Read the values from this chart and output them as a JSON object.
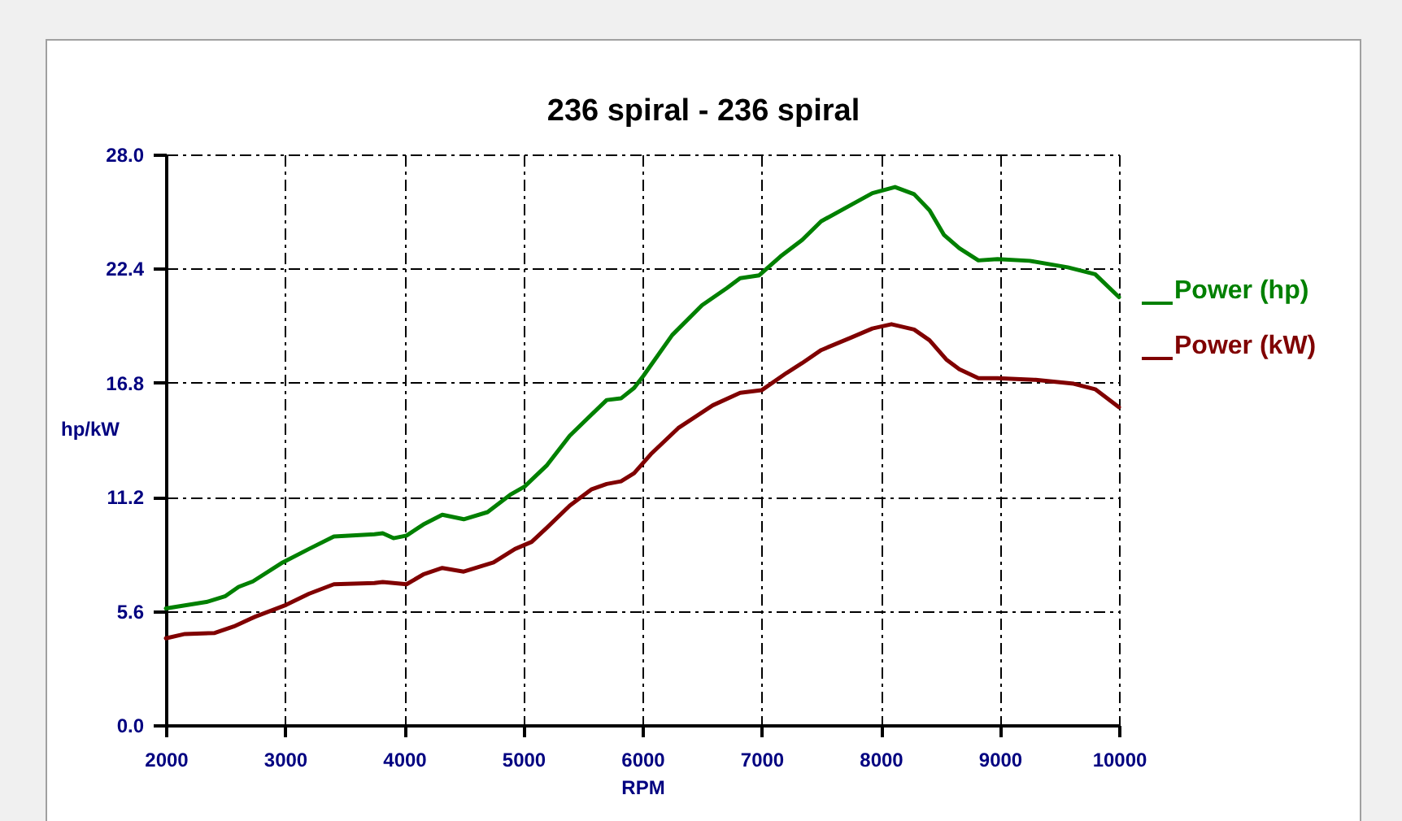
{
  "chart_data": {
    "type": "line",
    "title": "236 spiral - 236 spiral",
    "xlabel": "RPM",
    "ylabel": "hp/kW",
    "xlim": [
      2000,
      10000
    ],
    "xticks": [
      2000,
      3000,
      4000,
      5000,
      6000,
      7000,
      8000,
      9000,
      10000
    ],
    "ylim": [
      0,
      28
    ],
    "yticks": [
      {
        "value": 0,
        "label": "0.0"
      },
      5.6,
      11.2,
      16.8,
      22.4,
      {
        "value": 28,
        "label": "28.0"
      }
    ],
    "grid": true,
    "legend": "right",
    "series": [
      {
        "name": "Power (hp)",
        "color": "#008000",
        "x": [
          2000,
          2340,
          2500,
          2610,
          2730,
          2980,
          3200,
          3410,
          3750,
          3820,
          3910,
          4020,
          4160,
          4320,
          4500,
          4700,
          4890,
          5010,
          5200,
          5390,
          5520,
          5700,
          5820,
          5930,
          6010,
          6250,
          6500,
          6710,
          6820,
          6980,
          7160,
          7340,
          7500,
          7750,
          7930,
          8120,
          8280,
          8410,
          8530,
          8660,
          8820,
          8980,
          9250,
          9570,
          9800,
          10000
        ],
        "values": [
          5.72,
          6.04,
          6.33,
          6.78,
          7.05,
          7.98,
          8.64,
          9.25,
          9.36,
          9.41,
          9.17,
          9.3,
          9.84,
          10.32,
          10.1,
          10.45,
          11.3,
          11.7,
          12.76,
          14.2,
          14.94,
          15.95,
          16.03,
          16.54,
          17.15,
          19.14,
          20.6,
          21.45,
          21.93,
          22.07,
          23.0,
          23.8,
          24.72,
          25.52,
          26.1,
          26.4,
          26.05,
          25.26,
          24.06,
          23.4,
          22.8,
          22.86,
          22.78,
          22.46,
          22.12,
          21.0
        ]
      },
      {
        "name": "Power (kW)",
        "color": "#800000",
        "x": [
          2000,
          2160,
          2410,
          2570,
          2750,
          3010,
          3200,
          3410,
          3750,
          3820,
          4020,
          4160,
          4320,
          4500,
          4750,
          4930,
          5070,
          5200,
          5390,
          5570,
          5700,
          5820,
          5930,
          6070,
          6300,
          6590,
          6820,
          7000,
          7210,
          7340,
          7500,
          7750,
          7930,
          8090,
          8280,
          8410,
          8550,
          8660,
          8820,
          8980,
          9300,
          9620,
          9800,
          10000
        ],
        "values": [
          4.26,
          4.47,
          4.52,
          4.84,
          5.32,
          5.9,
          6.44,
          6.91,
          6.97,
          7.02,
          6.91,
          7.39,
          7.71,
          7.53,
          7.98,
          8.64,
          8.99,
          9.7,
          10.77,
          11.56,
          11.83,
          11.96,
          12.36,
          13.29,
          14.57,
          15.69,
          16.3,
          16.43,
          17.28,
          17.76,
          18.4,
          19.01,
          19.46,
          19.67,
          19.41,
          18.88,
          17.94,
          17.46,
          17.02,
          17.02,
          16.94,
          16.75,
          16.48,
          15.6
        ]
      }
    ]
  }
}
